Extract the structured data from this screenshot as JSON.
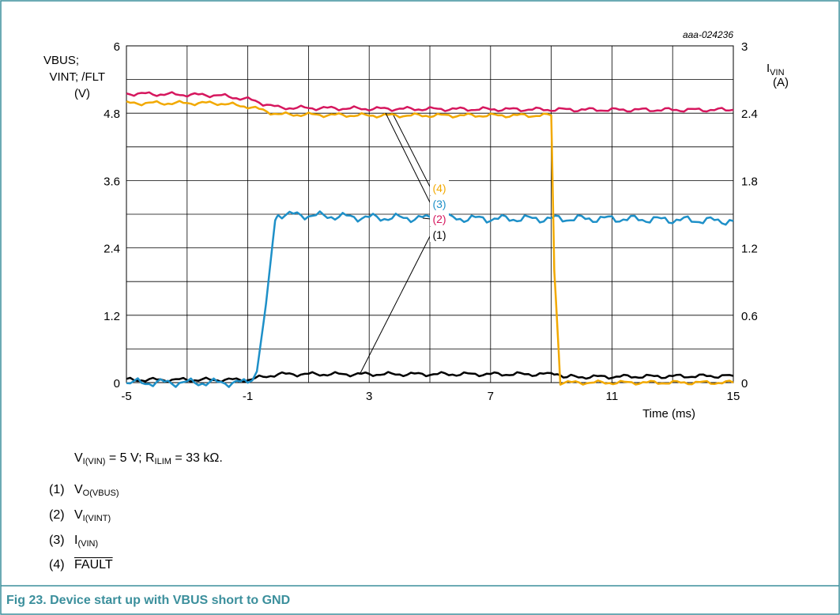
{
  "chart_data": {
    "type": "line",
    "id_label": "aaa-024236",
    "left_axis": {
      "label_lines": [
        "VBUS;",
        "VINT; /FLT",
        "(V)"
      ],
      "ylim": [
        0,
        6
      ],
      "ticks": [
        "0",
        "1.2",
        "2.4",
        "3.6",
        "4.8",
        "6"
      ]
    },
    "right_axis": {
      "label_main": "I",
      "label_sub": "VIN",
      "label_unit": "(A)",
      "ylim": [
        0,
        3
      ],
      "ticks": [
        "0",
        "0.6",
        "1.2",
        "1.8",
        "2.4",
        "3"
      ]
    },
    "x_axis": {
      "label": "Time (ms)",
      "xlim": [
        -5,
        15
      ],
      "ticks": [
        "-5",
        "-1",
        "3",
        "7",
        "11",
        "15"
      ]
    },
    "grid": true,
    "series": [
      {
        "name": "(1)",
        "color": "#000000",
        "axis": "left",
        "x": [
          -5,
          -3,
          -1,
          -0.5,
          0,
          3,
          7,
          9,
          9.2,
          9.4,
          15
        ],
        "y": [
          0.05,
          0.05,
          0.05,
          0.1,
          0.15,
          0.15,
          0.15,
          0.15,
          0.18,
          0.1,
          0.12
        ]
      },
      {
        "name": "(2)",
        "color": "#d6175e",
        "axis": "left",
        "x": [
          -5,
          -2,
          -1,
          0,
          3,
          7,
          11,
          15
        ],
        "y": [
          5.15,
          5.12,
          5.05,
          4.9,
          4.88,
          4.87,
          4.86,
          4.86
        ]
      },
      {
        "name": "(3)",
        "color": "#1e90c8",
        "axis": "right",
        "x": [
          -5,
          -1,
          -0.7,
          -0.4,
          -0.1,
          0,
          3,
          7,
          11,
          15
        ],
        "y": [
          0,
          0,
          0.1,
          0.7,
          1.45,
          1.5,
          1.47,
          1.46,
          1.46,
          1.44
        ]
      },
      {
        "name": "(4)",
        "color": "#f2a900",
        "axis": "left",
        "x": [
          -5,
          -2,
          -1,
          0,
          3,
          7,
          9.0,
          9.1,
          9.3,
          15
        ],
        "y": [
          4.98,
          4.98,
          4.92,
          4.78,
          4.76,
          4.76,
          4.76,
          2.0,
          0.0,
          0.0
        ]
      }
    ],
    "annotation_labels": [
      "(4)",
      "(3)",
      "(2)",
      "(1)"
    ]
  },
  "condition": {
    "v": "V",
    "v_sub": "I(VIN)",
    "v_rest": " = 5 V; R",
    "r_sub": "ILIM",
    "r_rest": " = 33 kΩ."
  },
  "legend": [
    {
      "num": "(1)",
      "main": "V",
      "sub": "O(VBUS)"
    },
    {
      "num": "(2)",
      "main": "V",
      "sub": "I(VINT)"
    },
    {
      "num": "(3)",
      "main": "I",
      "sub": "(VIN)"
    },
    {
      "num": "(4)",
      "main": "FAULT",
      "overline": true
    }
  ],
  "caption": "Fig 23.   Device start up with VBUS short to GND",
  "colors": {
    "frame": "#3b8f9c",
    "caption": "#3b8f9c"
  }
}
